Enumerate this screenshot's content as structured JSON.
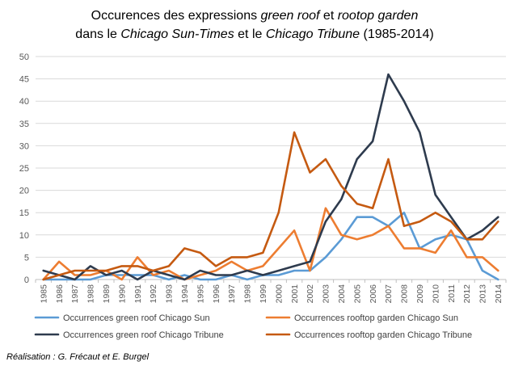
{
  "chart_data": {
    "type": "line",
    "title_line1": {
      "a": "Occurences des expressions ",
      "b": "green roof",
      "c": " et ",
      "d": "rootop garden"
    },
    "title_line2": {
      "a": "dans le ",
      "b": "Chicago Sun-Times",
      "c": " et le ",
      "d": "Chicago Tribune",
      "e": " (1985-2014)"
    },
    "categories": [
      "1985",
      "1986",
      "1987",
      "1988",
      "1989",
      "1990",
      "1991",
      "1992",
      "1993",
      "1994",
      "1995",
      "1996",
      "1997",
      "1998",
      "1999",
      "2000",
      "2001",
      "2002",
      "2003",
      "2004",
      "2005",
      "2006",
      "2007",
      "2008",
      "2009",
      "2010",
      "2011",
      "2012",
      "2013",
      "2014"
    ],
    "ylim": [
      0,
      50
    ],
    "yticks": [
      0,
      5,
      10,
      15,
      20,
      25,
      30,
      35,
      40,
      45,
      50
    ],
    "grid": true,
    "legend_position": "bottom",
    "series": [
      {
        "name": "Occurrences green roof  Chicago Sun",
        "color": "#5b9bd5",
        "values": [
          0,
          0,
          0,
          0,
          1,
          1,
          1,
          1,
          0,
          1,
          0,
          0,
          1,
          0,
          1,
          1,
          2,
          2,
          5,
          9,
          14,
          14,
          12,
          15,
          7,
          9,
          10,
          9,
          2,
          0
        ]
      },
      {
        "name": "Occurrences rooftop garden Chicago Sun",
        "color": "#ed7d31",
        "values": [
          0,
          4,
          1,
          1,
          2,
          0,
          5,
          1,
          2,
          0,
          1,
          2,
          4,
          2,
          3,
          7,
          11,
          2,
          16,
          10,
          9,
          10,
          12,
          7,
          7,
          6,
          11,
          5,
          5,
          2
        ]
      },
      {
        "name": "Occurrences green roof Chicago Tribune",
        "color": "#2e3b4e",
        "values": [
          2,
          1,
          0,
          3,
          1,
          2,
          0,
          2,
          1,
          0,
          2,
          1,
          1,
          2,
          1,
          2,
          3,
          4,
          13,
          18,
          27,
          31,
          46,
          40,
          33,
          19,
          14,
          9,
          11,
          14
        ]
      },
      {
        "name": "Occurrences rooftop garden Chicago Tribune",
        "color": "#c55a11",
        "values": [
          0,
          1,
          2,
          2,
          2,
          3,
          3,
          2,
          3,
          7,
          6,
          3,
          5,
          5,
          6,
          15,
          33,
          24,
          27,
          21,
          17,
          16,
          27,
          12,
          13,
          15,
          13,
          9,
          9,
          13
        ]
      }
    ],
    "credit": "Réalisation : G. Frécaut et E. Burgel"
  }
}
